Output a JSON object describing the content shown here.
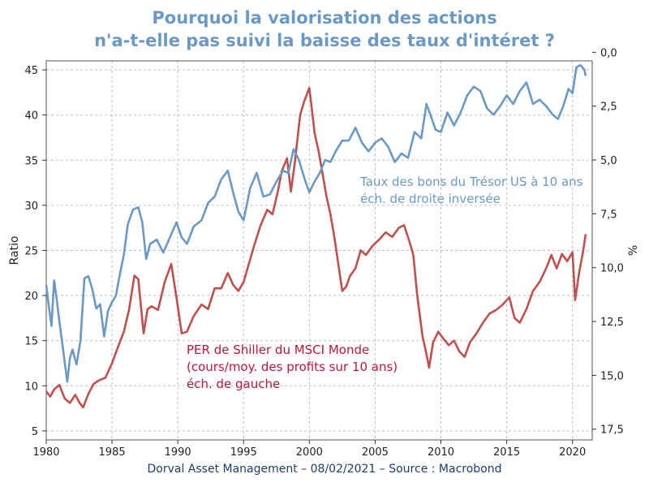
{
  "title_line1": "Pourquoi la valorisation des actions",
  "title_line2": "n'a-t-elle pas suivi la baisse des taux d'intéret ?",
  "footer": "Dorval Asset Management – 08/02/2021 –  Source : Macrobond",
  "colors": {
    "title": "#6a99c6",
    "blue": "#6a99c6",
    "red": "#c0504d",
    "red_text": "#c0163c",
    "footer": "#1f3d66"
  },
  "chart_data": {
    "type": "line",
    "xlim": [
      1980,
      2021.5
    ],
    "x_ticks": [
      1980,
      1985,
      1990,
      1995,
      2000,
      2005,
      2010,
      2015,
      2020
    ],
    "x_tick_labels": [
      "1980",
      "1985",
      "1990",
      "1995",
      "2000",
      "2005",
      "2010",
      "2015",
      "2020"
    ],
    "left_axis": {
      "label": "Ratio",
      "lim": [
        4,
        46
      ],
      "ticks": [
        5,
        10,
        15,
        20,
        25,
        30,
        35,
        40,
        45
      ],
      "tick_labels": [
        "5",
        "10",
        "15",
        "20",
        "25",
        "30",
        "35",
        "40",
        "45"
      ]
    },
    "right_axis": {
      "label": "%",
      "lim": [
        0.4,
        18.0
      ],
      "inverted": true,
      "ticks": [
        0,
        2.5,
        5,
        7.5,
        10,
        12.5,
        15,
        17.5
      ],
      "tick_labels": [
        "0,0",
        "2,5",
        "5,0",
        "7,5",
        "10,0",
        "12,5",
        "15,0",
        "17,5"
      ]
    },
    "grid": true,
    "series": [
      {
        "name_lines": [
          "PER de Shiller du MSCI Monde",
          "(cours/moy. des profits sur 10 ans)",
          "éch. de gauche"
        ],
        "axis": "left",
        "color": "#c0504d",
        "x": [
          1980.0,
          1980.3,
          1980.6,
          1981.0,
          1981.4,
          1981.8,
          1982.2,
          1982.5,
          1982.8,
          1983.2,
          1983.6,
          1984.0,
          1984.5,
          1985.0,
          1985.5,
          1985.9,
          1986.3,
          1986.7,
          1987.0,
          1987.4,
          1987.7,
          1988.0,
          1988.5,
          1989.0,
          1989.5,
          1989.9,
          1990.3,
          1990.7,
          1991.2,
          1991.8,
          1992.3,
          1992.8,
          1993.3,
          1993.8,
          1994.2,
          1994.6,
          1995.0,
          1995.4,
          1995.8,
          1996.3,
          1996.8,
          1997.2,
          1997.6,
          1997.9,
          1998.3,
          1998.6,
          1998.9,
          1999.3,
          1999.6,
          2000.0,
          2000.2,
          2000.4,
          2000.7,
          2001.0,
          2001.3,
          2001.6,
          2001.9,
          2002.2,
          2002.5,
          2002.8,
          2003.1,
          2003.5,
          2003.9,
          2004.3,
          2004.8,
          2005.3,
          2005.8,
          2006.3,
          2006.8,
          2007.2,
          2007.6,
          2007.9,
          2008.2,
          2008.6,
          2008.9,
          2009.1,
          2009.4,
          2009.8,
          2010.2,
          2010.6,
          2011.0,
          2011.4,
          2011.8,
          2012.2,
          2012.7,
          2013.2,
          2013.7,
          2014.2,
          2014.7,
          2015.2,
          2015.6,
          2016.0,
          2016.5,
          2017.0,
          2017.5,
          2018.0,
          2018.4,
          2018.8,
          2019.2,
          2019.6,
          2020.0,
          2020.2,
          2020.5,
          2020.8,
          2021.0
        ],
        "values": [
          9.4,
          8.8,
          9.6,
          10.1,
          8.6,
          8.1,
          9.0,
          8.2,
          7.6,
          9.1,
          10.2,
          10.6,
          10.9,
          12.5,
          14.5,
          16.0,
          18.5,
          22.2,
          21.8,
          15.8,
          18.5,
          18.8,
          18.4,
          21.5,
          23.5,
          19.8,
          15.8,
          16.0,
          17.7,
          19.0,
          18.5,
          20.8,
          20.8,
          22.5,
          21.2,
          20.5,
          21.5,
          23.5,
          25.5,
          27.8,
          29.5,
          29.0,
          31.5,
          33.8,
          35.2,
          31.5,
          34.8,
          40.0,
          41.5,
          43.0,
          40.5,
          38.0,
          36.0,
          33.5,
          31.0,
          29.0,
          26.5,
          23.5,
          20.5,
          21.0,
          22.2,
          23.0,
          25.0,
          24.5,
          25.5,
          26.2,
          27.0,
          26.5,
          27.5,
          27.8,
          26.0,
          24.5,
          20.0,
          15.5,
          13.5,
          12.0,
          14.8,
          16.0,
          15.2,
          14.5,
          15.0,
          13.8,
          13.2,
          14.8,
          15.8,
          17.0,
          18.0,
          18.4,
          19.0,
          19.8,
          17.5,
          17.0,
          18.5,
          20.5,
          21.5,
          23.0,
          24.5,
          23.0,
          24.6,
          23.8,
          24.8,
          19.5,
          22.5,
          24.8,
          26.8
        ]
      },
      {
        "name_lines": [
          "Taux des bons du Trésor US à 10 ans",
          "éch. de droite inversée"
        ],
        "axis": "right",
        "color": "#6a99c6",
        "x": [
          1980.0,
          1980.2,
          1980.4,
          1980.6,
          1980.8,
          1981.0,
          1981.3,
          1981.6,
          1981.8,
          1982.0,
          1982.3,
          1982.6,
          1982.9,
          1983.2,
          1983.5,
          1983.8,
          1984.1,
          1984.4,
          1984.7,
          1985.0,
          1985.3,
          1985.6,
          1985.9,
          1986.2,
          1986.6,
          1987.0,
          1987.3,
          1987.6,
          1987.9,
          1988.4,
          1988.9,
          1989.4,
          1989.9,
          1990.3,
          1990.7,
          1991.2,
          1991.8,
          1992.3,
          1992.8,
          1993.3,
          1993.8,
          1994.2,
          1994.6,
          1995.0,
          1995.5,
          1996.0,
          1996.5,
          1997.0,
          1997.5,
          1998.0,
          1998.4,
          1998.8,
          1999.2,
          1999.7,
          2000.0,
          2000.4,
          2000.8,
          2001.2,
          2001.6,
          2002.0,
          2002.5,
          2003.0,
          2003.5,
          2004.0,
          2004.5,
          2005.0,
          2005.5,
          2006.0,
          2006.5,
          2007.0,
          2007.5,
          2008.0,
          2008.5,
          2008.9,
          2009.2,
          2009.6,
          2010.0,
          2010.5,
          2011.0,
          2011.5,
          2012.0,
          2012.5,
          2013.0,
          2013.5,
          2014.0,
          2014.5,
          2015.0,
          2015.5,
          2016.0,
          2016.5,
          2017.0,
          2017.5,
          2018.0,
          2018.5,
          2018.9,
          2019.3,
          2019.7,
          2020.0,
          2020.3,
          2020.6,
          2020.9,
          2021.0
        ],
        "values": [
          10.8,
          11.8,
          12.7,
          10.6,
          11.5,
          12.5,
          13.9,
          15.3,
          14.2,
          13.8,
          14.5,
          13.4,
          10.5,
          10.4,
          11.0,
          11.9,
          11.7,
          13.2,
          12.0,
          11.6,
          11.3,
          10.3,
          9.4,
          8.0,
          7.3,
          7.2,
          7.9,
          9.6,
          8.9,
          8.7,
          9.3,
          8.6,
          7.9,
          8.6,
          8.9,
          8.1,
          7.8,
          7.0,
          6.7,
          5.9,
          5.5,
          6.5,
          7.4,
          7.8,
          6.3,
          5.6,
          6.7,
          6.6,
          6.0,
          5.5,
          5.6,
          4.5,
          5.0,
          6.0,
          6.5,
          6.0,
          5.6,
          5.0,
          5.1,
          4.6,
          4.1,
          4.1,
          3.5,
          4.2,
          4.6,
          4.2,
          4.0,
          4.4,
          5.1,
          4.7,
          4.9,
          3.7,
          4.0,
          2.4,
          2.9,
          3.6,
          3.7,
          2.8,
          3.4,
          2.8,
          2.0,
          1.6,
          1.8,
          2.6,
          2.9,
          2.5,
          2.0,
          2.4,
          1.8,
          1.4,
          2.4,
          2.2,
          2.5,
          2.9,
          3.1,
          2.5,
          1.7,
          1.9,
          0.7,
          0.6,
          0.8,
          1.1
        ]
      }
    ]
  }
}
